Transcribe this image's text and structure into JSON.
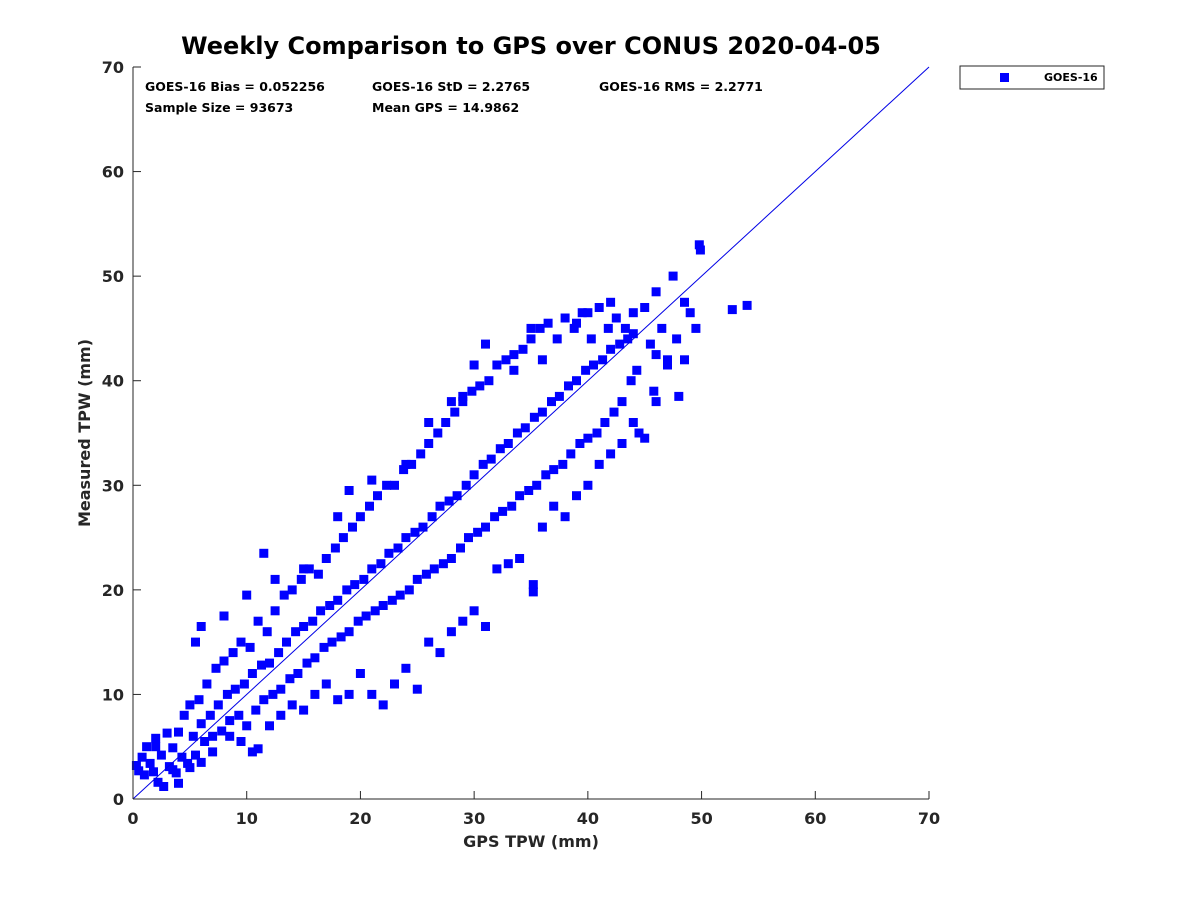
{
  "chart_data": {
    "type": "scatter",
    "title": "Weekly Comparison to GPS over CONUS 2020-04-05",
    "xlabel": "GPS TPW (mm)",
    "ylabel": "Measured TPW (mm)",
    "xlim": [
      0,
      70
    ],
    "ylim": [
      0,
      70
    ],
    "xticks": [
      0,
      10,
      20,
      30,
      40,
      50,
      60,
      70
    ],
    "yticks": [
      0,
      10,
      20,
      30,
      40,
      50,
      60,
      70
    ],
    "x_tick_labels": [
      "0",
      "10",
      "20",
      "30",
      "40",
      "50",
      "60",
      "70"
    ],
    "y_tick_labels": [
      "0",
      "10",
      "20",
      "30",
      "40",
      "50",
      "60",
      "70"
    ],
    "grid": false,
    "legend_position": "outside-top-right",
    "stats": {
      "bias": "GOES-16 Bias = 0.052256",
      "std": "GOES-16 StD = 2.2765",
      "rms": "GOES-16 RMS = 2.2771",
      "sample_size": "Sample Size = 93673",
      "mean_gps": "Mean GPS = 14.9862"
    },
    "reference_line": {
      "name": "1:1 line",
      "x": [
        0,
        70
      ],
      "y": [
        0,
        70
      ],
      "color": "#0000e6"
    },
    "series": [
      {
        "name": "GOES-16",
        "color": "#0000ff",
        "marker": "square",
        "points": [
          [
            0.3,
            3.2
          ],
          [
            0.5,
            2.7
          ],
          [
            0.8,
            4.0
          ],
          [
            1.0,
            2.3
          ],
          [
            1.2,
            5.0
          ],
          [
            1.5,
            3.4
          ],
          [
            1.8,
            2.6
          ],
          [
            2.0,
            5.8
          ],
          [
            2.2,
            1.6
          ],
          [
            2.5,
            4.2
          ],
          [
            2.7,
            1.2
          ],
          [
            3.0,
            6.3
          ],
          [
            3.2,
            3.1
          ],
          [
            3.5,
            4.9
          ],
          [
            3.8,
            2.5
          ],
          [
            4.0,
            6.4
          ],
          [
            4.3,
            4.0
          ],
          [
            4.5,
            8.0
          ],
          [
            4.8,
            3.4
          ],
          [
            5.0,
            9.0
          ],
          [
            5.3,
            6.0
          ],
          [
            5.5,
            4.2
          ],
          [
            5.8,
            9.5
          ],
          [
            6.0,
            7.2
          ],
          [
            6.3,
            5.5
          ],
          [
            6.5,
            11.0
          ],
          [
            6.8,
            8.0
          ],
          [
            7.0,
            6.0
          ],
          [
            7.3,
            12.5
          ],
          [
            7.5,
            9.0
          ],
          [
            7.8,
            6.5
          ],
          [
            8.0,
            13.2
          ],
          [
            8.3,
            10.0
          ],
          [
            8.5,
            7.5
          ],
          [
            8.8,
            14.0
          ],
          [
            9.0,
            10.5
          ],
          [
            9.3,
            8.0
          ],
          [
            9.5,
            15.0
          ],
          [
            9.8,
            11.0
          ],
          [
            10.0,
            7.0
          ],
          [
            10.3,
            14.5
          ],
          [
            10.5,
            12.0
          ],
          [
            10.8,
            8.5
          ],
          [
            11.0,
            17.0
          ],
          [
            11.3,
            12.8
          ],
          [
            11.5,
            9.5
          ],
          [
            11.8,
            16.0
          ],
          [
            12.0,
            13.0
          ],
          [
            12.3,
            10.0
          ],
          [
            12.5,
            18.0
          ],
          [
            12.8,
            14.0
          ],
          [
            13.0,
            10.5
          ],
          [
            13.3,
            19.5
          ],
          [
            13.5,
            15.0
          ],
          [
            13.8,
            11.5
          ],
          [
            14.0,
            20.0
          ],
          [
            14.3,
            16.0
          ],
          [
            14.5,
            12.0
          ],
          [
            14.8,
            21.0
          ],
          [
            15.0,
            16.5
          ],
          [
            15.3,
            13.0
          ],
          [
            15.5,
            22.0
          ],
          [
            15.8,
            17.0
          ],
          [
            16.0,
            13.5
          ],
          [
            16.3,
            21.5
          ],
          [
            16.5,
            18.0
          ],
          [
            16.8,
            14.5
          ],
          [
            17.0,
            23.0
          ],
          [
            17.3,
            18.5
          ],
          [
            17.5,
            15.0
          ],
          [
            17.8,
            24.0
          ],
          [
            18.0,
            19.0
          ],
          [
            18.3,
            15.5
          ],
          [
            18.5,
            25.0
          ],
          [
            18.8,
            20.0
          ],
          [
            19.0,
            16.0
          ],
          [
            19.3,
            26.0
          ],
          [
            19.5,
            20.5
          ],
          [
            19.8,
            17.0
          ],
          [
            20.0,
            27.0
          ],
          [
            20.3,
            21.0
          ],
          [
            20.5,
            17.5
          ],
          [
            20.8,
            28.0
          ],
          [
            21.0,
            22.0
          ],
          [
            21.3,
            18.0
          ],
          [
            21.5,
            29.0
          ],
          [
            21.8,
            22.5
          ],
          [
            22.0,
            18.5
          ],
          [
            22.3,
            30.0
          ],
          [
            22.5,
            23.5
          ],
          [
            22.8,
            19.0
          ],
          [
            23.0,
            30.0
          ],
          [
            23.3,
            24.0
          ],
          [
            23.5,
            19.5
          ],
          [
            23.8,
            31.5
          ],
          [
            24.0,
            25.0
          ],
          [
            24.3,
            20.0
          ],
          [
            24.5,
            32.0
          ],
          [
            24.8,
            25.5
          ],
          [
            25.0,
            21.0
          ],
          [
            25.3,
            33.0
          ],
          [
            25.5,
            26.0
          ],
          [
            25.8,
            21.5
          ],
          [
            26.0,
            34.0
          ],
          [
            26.3,
            27.0
          ],
          [
            26.5,
            22.0
          ],
          [
            26.8,
            35.0
          ],
          [
            27.0,
            28.0
          ],
          [
            27.3,
            22.5
          ],
          [
            27.5,
            36.0
          ],
          [
            27.8,
            28.5
          ],
          [
            28.0,
            23.0
          ],
          [
            28.3,
            37.0
          ],
          [
            28.5,
            29.0
          ],
          [
            28.8,
            24.0
          ],
          [
            29.0,
            38.0
          ],
          [
            29.3,
            30.0
          ],
          [
            29.5,
            25.0
          ],
          [
            29.8,
            39.0
          ],
          [
            30.0,
            31.0
          ],
          [
            30.3,
            25.5
          ],
          [
            30.5,
            39.5
          ],
          [
            30.8,
            32.0
          ],
          [
            31.0,
            26.0
          ],
          [
            31.3,
            40.0
          ],
          [
            31.5,
            32.5
          ],
          [
            31.8,
            27.0
          ],
          [
            32.0,
            41.5
          ],
          [
            32.3,
            33.5
          ],
          [
            32.5,
            27.5
          ],
          [
            32.8,
            42.0
          ],
          [
            33.0,
            34.0
          ],
          [
            33.3,
            28.0
          ],
          [
            33.5,
            42.5
          ],
          [
            33.8,
            35.0
          ],
          [
            34.0,
            29.0
          ],
          [
            34.3,
            43.0
          ],
          [
            34.5,
            35.5
          ],
          [
            34.8,
            29.5
          ],
          [
            35.0,
            44.0
          ],
          [
            35.3,
            36.5
          ],
          [
            35.5,
            30.0
          ],
          [
            35.8,
            45.0
          ],
          [
            36.0,
            37.0
          ],
          [
            36.3,
            31.0
          ],
          [
            36.5,
            45.5
          ],
          [
            36.8,
            38.0
          ],
          [
            37.0,
            31.5
          ],
          [
            37.3,
            44.0
          ],
          [
            37.5,
            38.5
          ],
          [
            37.8,
            32.0
          ],
          [
            38.0,
            46.0
          ],
          [
            38.3,
            39.5
          ],
          [
            38.5,
            33.0
          ],
          [
            38.8,
            45.0
          ],
          [
            39.0,
            40.0
          ],
          [
            39.3,
            34.0
          ],
          [
            39.5,
            46.5
          ],
          [
            39.8,
            41.0
          ],
          [
            40.0,
            34.5
          ],
          [
            40.3,
            44.0
          ],
          [
            40.5,
            41.5
          ],
          [
            40.8,
            35.0
          ],
          [
            41.0,
            47.0
          ],
          [
            41.3,
            42.0
          ],
          [
            41.5,
            36.0
          ],
          [
            41.8,
            45.0
          ],
          [
            42.0,
            43.0
          ],
          [
            42.3,
            37.0
          ],
          [
            42.5,
            46.0
          ],
          [
            42.8,
            43.5
          ],
          [
            43.0,
            38.0
          ],
          [
            43.3,
            45.0
          ],
          [
            43.5,
            44.0
          ],
          [
            43.8,
            40.0
          ],
          [
            44.0,
            46.5
          ],
          [
            44.3,
            41.0
          ],
          [
            44.5,
            35.0
          ],
          [
            45.0,
            47.0
          ],
          [
            45.5,
            43.5
          ],
          [
            45.8,
            39.0
          ],
          [
            46.0,
            48.5
          ],
          [
            46.5,
            45.0
          ],
          [
            47.0,
            41.5
          ],
          [
            47.5,
            50.0
          ],
          [
            47.8,
            44.0
          ],
          [
            48.0,
            38.5
          ],
          [
            48.5,
            47.5
          ],
          [
            49.0,
            46.5
          ],
          [
            49.5,
            45.0
          ],
          [
            49.8,
            53.0
          ],
          [
            49.9,
            52.5
          ],
          [
            52.7,
            46.8
          ],
          [
            54.0,
            47.2
          ],
          [
            2.0,
            5.0
          ],
          [
            3.5,
            2.8
          ],
          [
            4.0,
            1.5
          ],
          [
            5.0,
            3.0
          ],
          [
            6.0,
            3.5
          ],
          [
            7.0,
            4.5
          ],
          [
            8.5,
            6.0
          ],
          [
            9.5,
            5.5
          ],
          [
            10.5,
            4.5
          ],
          [
            11.0,
            4.8
          ],
          [
            12.0,
            7.0
          ],
          [
            13.0,
            8.0
          ],
          [
            14.0,
            9.0
          ],
          [
            15.0,
            8.5
          ],
          [
            16.0,
            10.0
          ],
          [
            17.0,
            11.0
          ],
          [
            18.0,
            9.5
          ],
          [
            19.0,
            10.0
          ],
          [
            20.0,
            12.0
          ],
          [
            21.0,
            10.0
          ],
          [
            22.0,
            9.0
          ],
          [
            23.0,
            11.0
          ],
          [
            24.0,
            12.5
          ],
          [
            25.0,
            10.5
          ],
          [
            26.0,
            15.0
          ],
          [
            27.0,
            14.0
          ],
          [
            28.0,
            16.0
          ],
          [
            29.0,
            17.0
          ],
          [
            30.0,
            18.0
          ],
          [
            31.0,
            16.5
          ],
          [
            32.0,
            22.0
          ],
          [
            33.0,
            22.5
          ],
          [
            34.0,
            23.0
          ],
          [
            35.2,
            19.8
          ],
          [
            35.2,
            20.5
          ],
          [
            36.0,
            26.0
          ],
          [
            37.0,
            28.0
          ],
          [
            38.0,
            27.0
          ],
          [
            39.0,
            29.0
          ],
          [
            40.0,
            30.0
          ],
          [
            41.0,
            32.0
          ],
          [
            42.0,
            33.0
          ],
          [
            43.0,
            34.0
          ],
          [
            44.0,
            36.0
          ],
          [
            45.0,
            34.5
          ],
          [
            46.0,
            38.0
          ],
          [
            47.0,
            42.0
          ],
          [
            48.5,
            42.0
          ],
          [
            5.5,
            15.0
          ],
          [
            6.0,
            16.5
          ],
          [
            8.0,
            17.5
          ],
          [
            10.0,
            19.5
          ],
          [
            11.5,
            23.5
          ],
          [
            12.5,
            21.0
          ],
          [
            15.0,
            22.0
          ],
          [
            18.0,
            27.0
          ],
          [
            19.0,
            29.5
          ],
          [
            21.0,
            30.5
          ],
          [
            24.0,
            32.0
          ],
          [
            26.0,
            36.0
          ],
          [
            28.0,
            38.0
          ],
          [
            29.0,
            38.5
          ],
          [
            30.0,
            41.5
          ],
          [
            31.0,
            43.5
          ],
          [
            33.5,
            41.0
          ],
          [
            35.0,
            45.0
          ],
          [
            36.0,
            42.0
          ],
          [
            39.0,
            45.5
          ],
          [
            40.0,
            46.5
          ],
          [
            42.0,
            47.5
          ],
          [
            44.0,
            44.5
          ],
          [
            46.0,
            42.5
          ]
        ]
      }
    ]
  },
  "legend": {
    "entries": [
      {
        "label": "GOES-16",
        "color": "#0000ff"
      }
    ]
  }
}
